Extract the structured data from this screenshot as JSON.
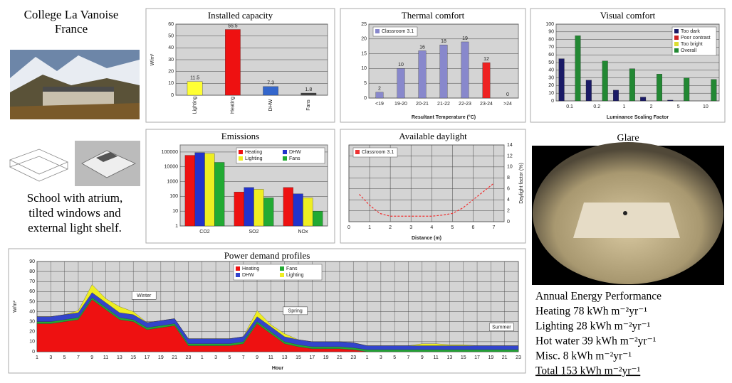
{
  "header": {
    "title": "College La Vanoise",
    "subtitle": "France"
  },
  "caption": "School with atrium, tilted windows and external light shelf.",
  "glare": {
    "title": "Glare"
  },
  "performance": {
    "title": "Annual Energy Performance",
    "lines": [
      "Heating 78 kWh m⁻²yr⁻¹",
      "Lighting 28 kWh m⁻²yr⁻¹",
      "Hot water 39 kWh m⁻²yr⁻¹",
      "Misc. 8 kWh m⁻²yr⁻¹",
      "Total 153 kWh m⁻²yr⁻¹"
    ]
  },
  "chart_data": [
    {
      "type": "bar",
      "title": "Installed capacity",
      "ylabel": "W/m²",
      "categories": [
        "Lighting",
        "Heating",
        "DHW",
        "Fans"
      ],
      "values": [
        11.5,
        55.5,
        7.3,
        1.8
      ],
      "colors": [
        "#ffff33",
        "#ee1111",
        "#3366cc",
        "#444444"
      ],
      "ylim": [
        0,
        60
      ],
      "yticks": [
        0,
        10,
        20,
        30,
        40,
        50,
        60
      ],
      "grid": true
    },
    {
      "type": "bar",
      "title": "Thermal comfort",
      "xlabel": "Resultant Temperature (°C)",
      "categories": [
        "<19",
        "19-20",
        "20-21",
        "21-22",
        "22-23",
        "23-24",
        ">24"
      ],
      "values": [
        2,
        10,
        16,
        18,
        19,
        12,
        0
      ],
      "colors": [
        "#8888cc",
        "#8888cc",
        "#8888cc",
        "#8888cc",
        "#8888cc",
        "#ee2222",
        "#8888cc"
      ],
      "legend_label": "Classroom 3.1",
      "legend": "upper left",
      "ylim": [
        0,
        25
      ],
      "yticks": [
        0,
        5,
        10,
        15,
        20,
        25
      ],
      "grid": true
    },
    {
      "type": "bar",
      "title": "Visual comfort",
      "xlabel": "Luminance Scaling Factor",
      "categories": [
        "0.1",
        "0.2",
        "1",
        "2",
        "5",
        "10"
      ],
      "series": [
        {
          "name": "Too dark",
          "color": "#1a1a66",
          "values": [
            55,
            27,
            14,
            5,
            1,
            0
          ]
        },
        {
          "name": "Poor contrast",
          "color": "#cc2222",
          "values": [
            0,
            0,
            0,
            0,
            0,
            0
          ]
        },
        {
          "name": "Too bright",
          "color": "#dddd33",
          "values": [
            0,
            0,
            0,
            0,
            0,
            0
          ]
        },
        {
          "name": "Overall",
          "color": "#228833",
          "values": [
            85,
            52,
            42,
            35,
            30,
            28
          ]
        }
      ],
      "legend": "upper right",
      "ylim": [
        0,
        100
      ],
      "yticks": [
        0,
        10,
        20,
        30,
        40,
        50,
        60,
        70,
        80,
        90,
        100
      ],
      "grid": true
    },
    {
      "type": "bar",
      "title": "Emissions",
      "log_y": true,
      "categories": [
        "CO2",
        "SO2",
        "NOx"
      ],
      "series": [
        {
          "name": "Heating",
          "color": "#ee1111",
          "values": [
            60000,
            200,
            400
          ]
        },
        {
          "name": "DHW",
          "color": "#2233cc",
          "values": [
            90000,
            400,
            150
          ]
        },
        {
          "name": "Lighting",
          "color": "#eeee22",
          "values": [
            80000,
            300,
            80
          ]
        },
        {
          "name": "Fans",
          "color": "#22aa33",
          "values": [
            20000,
            80,
            10
          ]
        }
      ],
      "legend": "upper right",
      "ylim": [
        1,
        300000
      ],
      "yticks": [
        1,
        10,
        100,
        1000,
        10000,
        100000
      ],
      "grid": true
    },
    {
      "type": "line",
      "title": "Available daylight",
      "xlabel": "Distance (m)",
      "y2label": "Daylight factor (%)",
      "x": [
        0.5,
        1,
        1.5,
        2,
        2.5,
        3,
        3.5,
        4,
        4.5,
        5,
        5.5,
        6,
        6.5,
        7
      ],
      "series": [
        {
          "name": "Classroom 3.1",
          "color": "#ee3333",
          "axis": "y2",
          "values": [
            5,
            3,
            1.5,
            1,
            1,
            1,
            1,
            1,
            1.2,
            1.5,
            2.5,
            4,
            5.5,
            7
          ]
        }
      ],
      "legend": "upper left",
      "xlim": [
        0,
        7.5
      ],
      "xticks": [
        0,
        1,
        2,
        3,
        4,
        5,
        6,
        7
      ],
      "y2lim": [
        0,
        14
      ],
      "y2ticks": [
        0,
        2,
        4,
        6,
        8,
        10,
        12,
        14
      ],
      "grid": true
    },
    {
      "type": "area",
      "title": "Power demand profiles",
      "xlabel": "Hour",
      "ylabel": "W/m²",
      "categories": [
        1,
        3,
        5,
        7,
        9,
        11,
        13,
        15,
        17,
        19,
        21,
        23,
        1,
        3,
        5,
        7,
        9,
        11,
        13,
        15,
        17,
        19,
        21,
        23,
        1,
        3,
        5,
        7,
        9,
        11,
        13,
        15,
        17,
        19,
        21,
        23
      ],
      "series": [
        {
          "name": "Heating",
          "color": "#ee1111",
          "values": [
            28,
            28,
            30,
            32,
            52,
            42,
            32,
            30,
            22,
            24,
            26,
            6,
            6,
            6,
            6,
            8,
            28,
            18,
            8,
            5,
            3,
            3,
            3,
            2,
            0,
            0,
            0,
            0,
            0,
            0,
            0,
            0,
            0,
            0,
            0,
            0
          ]
        },
        {
          "name": "Fans",
          "color": "#22aa33",
          "values": [
            2,
            2,
            2,
            2,
            2,
            2,
            2,
            2,
            2,
            2,
            2,
            2,
            2,
            2,
            2,
            2,
            2,
            2,
            2,
            2,
            2,
            2,
            2,
            2,
            2,
            2,
            2,
            2,
            2,
            2,
            2,
            2,
            2,
            2,
            2,
            2
          ]
        },
        {
          "name": "DHW",
          "color": "#3344cc",
          "values": [
            5,
            5,
            5,
            5,
            5,
            5,
            5,
            5,
            5,
            5,
            5,
            5,
            5,
            5,
            5,
            5,
            5,
            5,
            5,
            5,
            5,
            5,
            5,
            5,
            4,
            4,
            4,
            4,
            4,
            4,
            4,
            4,
            4,
            4,
            4,
            4
          ]
        },
        {
          "name": "Lighting",
          "color": "#eeee22",
          "values": [
            0,
            0,
            0,
            2,
            8,
            4,
            6,
            3,
            0,
            0,
            0,
            0,
            0,
            0,
            0,
            0,
            6,
            2,
            3,
            0,
            0,
            0,
            0,
            0,
            0,
            0,
            0,
            0,
            2,
            2,
            1,
            1,
            0,
            0,
            0,
            0
          ]
        }
      ],
      "annotations": [
        "Winter",
        "Spring",
        "Summer"
      ],
      "legend": "upper center",
      "ylim": [
        0,
        90
      ],
      "yticks": [
        0,
        10,
        20,
        30,
        40,
        50,
        60,
        70,
        80,
        90
      ],
      "grid": true
    }
  ]
}
